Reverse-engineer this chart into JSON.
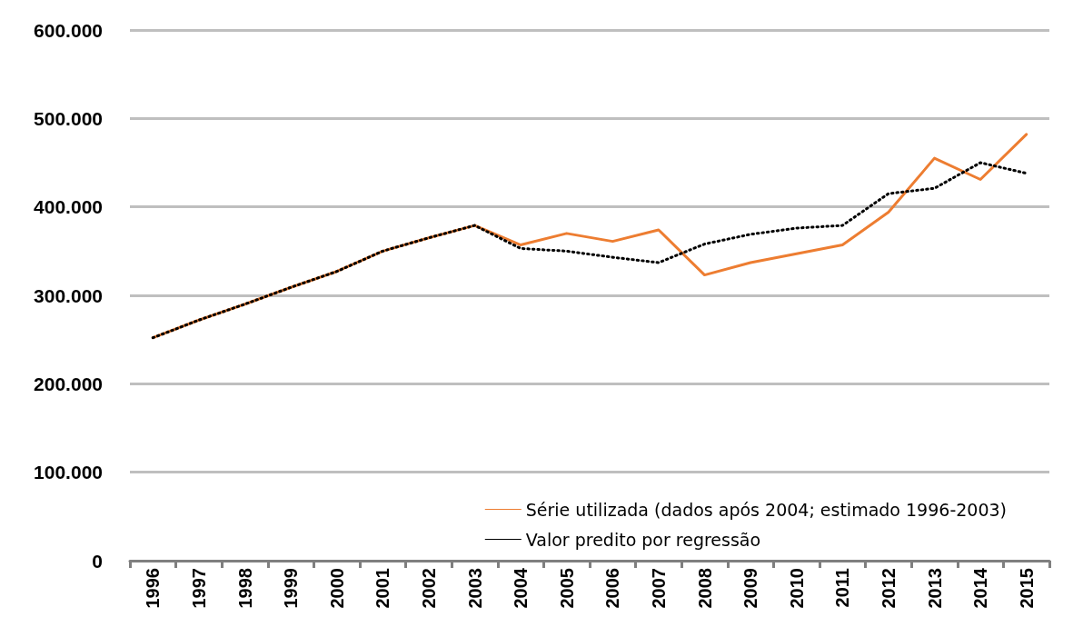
{
  "chart_data": {
    "type": "line",
    "categories": [
      "1996",
      "1997",
      "1998",
      "1999",
      "2000",
      "2001",
      "2002",
      "2003",
      "2004",
      "2005",
      "2006",
      "2007",
      "2008",
      "2009",
      "2010",
      "2011",
      "2012",
      "2013",
      "2014",
      "2015"
    ],
    "series": [
      {
        "name": "Série utilizada (dados após 2004; estimado 1996-2003)",
        "color": "#ed7d31",
        "line_style": "solid",
        "values": [
          252000,
          272000,
          290000,
          309000,
          327000,
          350000,
          365000,
          379000,
          357000,
          370000,
          361000,
          374000,
          323000,
          337000,
          347000,
          357000,
          394000,
          455000,
          431000,
          482000
        ]
      },
      {
        "name": "Valor predito por regressão",
        "color": "#000000",
        "line_style": "dotted",
        "values": [
          252000,
          272000,
          290000,
          309000,
          327000,
          350000,
          365000,
          379000,
          353000,
          350000,
          343000,
          337000,
          358000,
          369000,
          376000,
          379000,
          415000,
          421000,
          450000,
          438000
        ]
      }
    ],
    "ylim": [
      0,
      600000
    ],
    "yticks": [
      0,
      {
        "value": 100000,
        "label": "100.000"
      },
      {
        "value": 200000,
        "label": "200.000"
      },
      {
        "value": 300000,
        "label": "300.000"
      },
      {
        "value": 400000,
        "label": "400.000"
      },
      {
        "value": 500000,
        "label": "500.000"
      },
      {
        "value": 600000,
        "label": "600.000"
      }
    ],
    "grid": "y",
    "legend": "bottom right",
    "marker": "none"
  }
}
